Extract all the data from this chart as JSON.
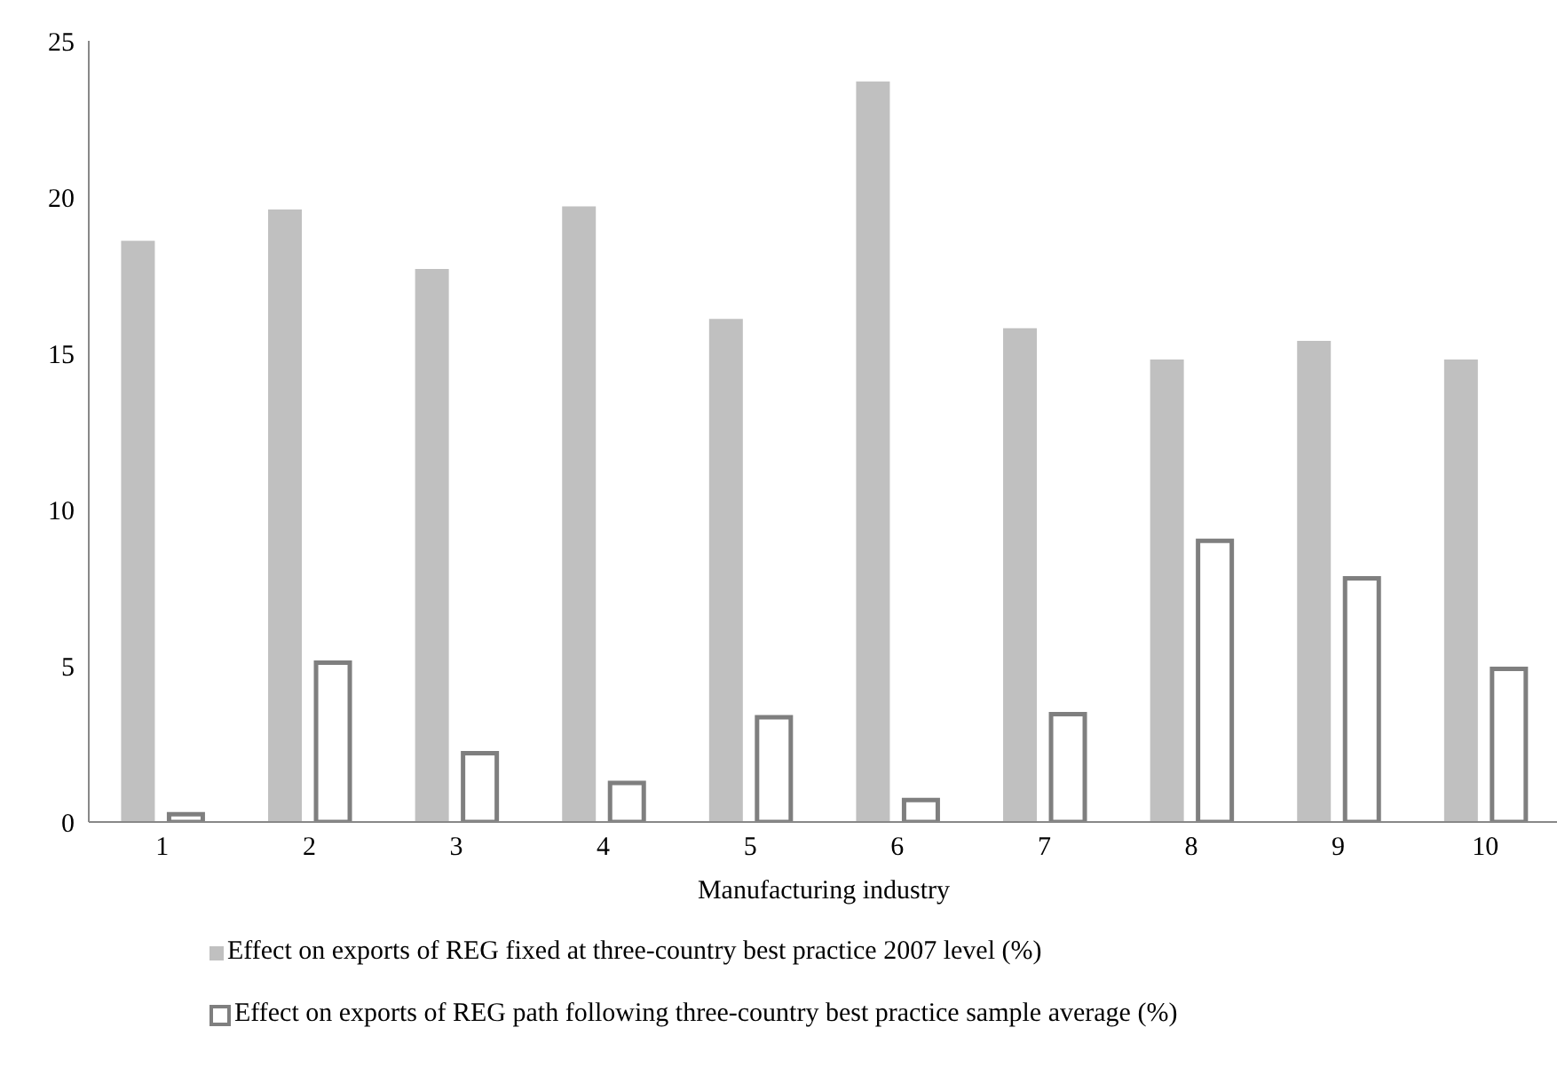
{
  "chart_data": {
    "type": "bar",
    "xlabel": "Manufacturing industry",
    "categories": [
      "1",
      "2",
      "3",
      "4",
      "5",
      "6",
      "7",
      "8",
      "9",
      "10"
    ],
    "series": [
      {
        "name": "Effect on exports of REG fixed at three-country best practice 2007 level (%)",
        "color": "#c0c0c0",
        "values": [
          18.6,
          19.6,
          17.7,
          19.7,
          16.1,
          23.7,
          15.8,
          14.8,
          15.4,
          14.8
        ]
      },
      {
        "name": "Effect on exports of REG path following three-country best practice sample average (%)",
        "color": "#7f7f7f",
        "values": [
          0.25,
          5.1,
          2.2,
          1.25,
          3.35,
          0.7,
          3.45,
          9.0,
          7.8,
          4.9
        ]
      }
    ],
    "ylim": [
      0,
      25
    ],
    "yticks": [
      0,
      5,
      10,
      15,
      20,
      25
    ],
    "legend": "bottom"
  }
}
